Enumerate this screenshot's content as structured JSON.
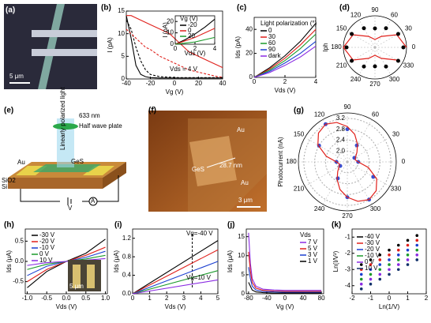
{
  "figures": [
    {
      "panel_label": "(a)",
      "scale_bar": "5 μm"
    },
    {
      "panel_label": "(e)",
      "wavelength": "633 nm",
      "plate": "Half wave plate",
      "beam": "Linearly polarized light",
      "electrode": "Au",
      "flake": "GeS",
      "oxide": "SiO2",
      "substrate": "Si",
      "source": "V",
      "meter": "A"
    },
    {
      "panel_label": "(f)",
      "electrode_top": "Au",
      "electrode_bottom": "Au",
      "flake": "GeS",
      "thickness": "28.7 nm",
      "scale_bar": "3 μm"
    }
  ],
  "chart_data": [
    {
      "type": "line",
      "panel_label": "(b)",
      "xlabel": "Vg (V)",
      "ylabel": "I (pA)",
      "annotations": [
        "Vds = 4 V"
      ],
      "xlim": [
        -40,
        40
      ],
      "xticks": [
        -40,
        -20,
        0,
        20,
        40
      ],
      "ylim": [
        0,
        15
      ],
      "yticks": [
        0,
        5,
        10,
        15
      ],
      "x": [
        -40,
        -36,
        -32,
        -28,
        -24,
        -20,
        -12,
        -4,
        4,
        12,
        20,
        28,
        36,
        40
      ],
      "series": [
        {
          "color": "#000000",
          "values": [
            14,
            9,
            3,
            1,
            0.5,
            0.3,
            0.2,
            0.2,
            0.2,
            0.2,
            0.2,
            0.2,
            0.2,
            0.2
          ]
        },
        {
          "color": "#000000",
          "dash": true,
          "values": [
            13,
            11,
            7,
            4,
            2,
            1,
            0.5,
            0.4,
            0.3,
            0.3,
            0.3,
            0.3,
            0.3,
            0.3
          ]
        },
        {
          "color": "#e0201b",
          "values": [
            14,
            14,
            13.5,
            13,
            12.5,
            12,
            11,
            10,
            8,
            6,
            5,
            4,
            3,
            2.5
          ]
        },
        {
          "color": "#e0201b",
          "dash": true,
          "values": [
            11,
            10,
            9,
            8,
            7,
            6.5,
            5,
            4,
            3,
            2,
            1.5,
            1,
            0.5,
            0.4
          ]
        }
      ]
    },
    {
      "type": "line",
      "xlabel": "Vds (V)",
      "ylabel": "I (pA)",
      "legend_title": "Vg (V)",
      "xlim": [
        0,
        4
      ],
      "xticks": [
        0,
        2,
        4
      ],
      "ylim": [
        0,
        25
      ],
      "yticks": [
        0,
        10,
        20
      ],
      "x": [
        0,
        1,
        2,
        3,
        4
      ],
      "series": [
        {
          "name": "-20",
          "color": "#000000",
          "values": [
            0,
            4,
            9,
            15,
            22
          ]
        },
        {
          "name": "0",
          "color": "#e0201b",
          "values": [
            0,
            3,
            6,
            10,
            14
          ]
        },
        {
          "name": "20",
          "color": "#1a9a2a",
          "values": [
            0,
            1,
            2,
            4,
            6
          ]
        }
      ]
    },
    {
      "type": "line",
      "panel_label": "(c)",
      "xlabel": "Vds (V)",
      "ylabel": "Ids (pA)",
      "legend_title": "Light polarization (°)",
      "xlim": [
        0,
        4
      ],
      "xticks": [
        0,
        2,
        4
      ],
      "ylim": [
        0,
        50
      ],
      "yticks": [
        0,
        20,
        40
      ],
      "x": [
        0,
        1,
        2,
        3,
        4
      ],
      "series": [
        {
          "name": "0",
          "color": "#000000",
          "values": [
            0,
            8,
            18,
            30,
            45
          ]
        },
        {
          "name": "30",
          "color": "#e0201b",
          "values": [
            0,
            7,
            16,
            27,
            40
          ]
        },
        {
          "name": "60",
          "color": "#1a9a2a",
          "values": [
            0,
            6,
            14,
            24,
            36
          ]
        },
        {
          "name": "90",
          "color": "#1b3fd0",
          "values": [
            0,
            5,
            12,
            20,
            30
          ]
        },
        {
          "name": "dark",
          "color": "#8a2be2",
          "values": [
            0,
            4,
            10,
            17,
            26
          ]
        }
      ]
    },
    {
      "type": "polar",
      "panel_label": "(d)",
      "rlabel": "Iph",
      "rlim": [
        0,
        1
      ],
      "xticks": [
        0,
        30,
        60,
        90,
        120,
        150,
        180,
        210,
        240,
        270,
        300,
        330
      ],
      "x": [
        0,
        30,
        60,
        90,
        120,
        150,
        180,
        210,
        240,
        270,
        300,
        330
      ],
      "series": [
        {
          "color": "#e0201b",
          "values": [
            1,
            0.8,
            0.4,
            0.25,
            0.4,
            0.8,
            1,
            0.8,
            0.4,
            0.25,
            0.4,
            0.8
          ]
        },
        {
          "color": "#000000",
          "mode": "markers",
          "values": [
            0.9,
            0.85,
            0.7,
            0.6,
            0.7,
            0.85,
            0.9,
            0.85,
            0.7,
            0.6,
            0.7,
            0.85
          ]
        }
      ]
    },
    {
      "type": "polar",
      "panel_label": "(g)",
      "rlabel": "Photocurrent (nA)",
      "rlim": [
        1.6,
        3.4
      ],
      "rticks": [
        {
          "value": 2,
          "label": "2.0"
        },
        2.4,
        2.8,
        3.2
      ],
      "xticks": [
        0,
        30,
        60,
        90,
        120,
        150,
        180,
        210,
        240,
        270,
        300,
        330
      ],
      "x": [
        0,
        30,
        60,
        90,
        120,
        150,
        180,
        210,
        240,
        270,
        300,
        330
      ],
      "series": [
        {
          "color": "#3a4fd0",
          "mode": "markers",
          "values": [
            2.0,
            1.9,
            2.3,
            2.8,
            3.2,
            2.8,
            2.0,
            1.9,
            2.3,
            2.9,
            3.2,
            2.7
          ]
        },
        {
          "color": "#e0201b",
          "x": [
            0,
            15,
            30,
            45,
            60,
            75,
            90,
            105,
            120,
            135,
            150,
            165,
            180,
            195,
            210,
            225,
            240,
            255,
            270,
            285,
            300,
            315,
            330,
            345,
            360
          ],
          "values": [
            2.0,
            1.9,
            1.95,
            2.1,
            2.35,
            2.65,
            2.9,
            3.1,
            3.2,
            3.1,
            2.85,
            2.4,
            2.0,
            1.9,
            1.95,
            2.1,
            2.35,
            2.65,
            2.9,
            3.1,
            3.2,
            3.1,
            2.85,
            2.4,
            2.0
          ]
        }
      ]
    },
    {
      "type": "line",
      "panel_label": "(h)",
      "xlabel": "Vds (V)",
      "ylabel": "Ids (μA)",
      "scale_bar": "5 μm",
      "xlim": [
        -1.05,
        1.05
      ],
      "xticks": [
        {
          "value": -1,
          "label": "-1.0"
        },
        -0.5,
        {
          "value": 0,
          "label": "0.0"
        },
        0.5,
        {
          "value": 1,
          "label": "1.0"
        }
      ],
      "ylim": [
        -0.8,
        0.8
      ],
      "yticks": [
        -0.5,
        {
          "value": 0,
          "label": "0.0"
        },
        0.5
      ],
      "x": [
        -1,
        -0.5,
        0,
        0.5,
        1
      ],
      "series": [
        {
          "name": "-30 V",
          "color": "#000000",
          "values": [
            -0.65,
            -0.25,
            0,
            0.2,
            0.55
          ]
        },
        {
          "name": "-20 V",
          "color": "#e0201b",
          "values": [
            -0.5,
            -0.2,
            0,
            0.15,
            0.35
          ]
        },
        {
          "name": "-10 V",
          "color": "#1b3fd0",
          "values": [
            -0.35,
            -0.12,
            0,
            0.1,
            0.25
          ]
        },
        {
          "name": "0 V",
          "color": "#1a9a2a",
          "values": [
            -0.2,
            -0.07,
            0,
            0.06,
            0.15
          ]
        },
        {
          "name": "10 V",
          "color": "#8a2be2",
          "values": [
            -0.1,
            -0.03,
            0,
            0.03,
            0.07
          ]
        }
      ]
    },
    {
      "type": "line",
      "panel_label": "(i)",
      "xlabel": "Vds (V)",
      "ylabel": "Ids (μA)",
      "annotations": [
        "Vg=-40 V",
        "Vg=10 V"
      ],
      "vline": 3.5,
      "xlim": [
        0,
        5
      ],
      "xticks": [
        0,
        1,
        2,
        3,
        4,
        5
      ],
      "ylim": [
        0,
        1.4
      ],
      "yticks": [
        {
          "value": 0,
          "label": "0.0"
        },
        0.4,
        0.8,
        1.2
      ],
      "x": [
        0,
        5
      ],
      "series": [
        {
          "color": "#000000",
          "values": [
            0,
            1.15
          ]
        },
        {
          "color": "#e0201b",
          "values": [
            0,
            0.95
          ]
        },
        {
          "color": "#1b3fd0",
          "values": [
            0,
            0.7
          ]
        },
        {
          "color": "#1a9a2a",
          "values": [
            0,
            0.5
          ]
        },
        {
          "color": "#8a2be2",
          "values": [
            0,
            0.3
          ]
        }
      ]
    },
    {
      "type": "line",
      "panel_label": "(j)",
      "xlabel": "Vg (V)",
      "ylabel": "Ids (μA)",
      "legend_title": "Vds",
      "xlim": [
        -85,
        85
      ],
      "xticks": [
        -80,
        -40,
        0,
        40,
        80
      ],
      "ylim": [
        0,
        17
      ],
      "yticks": [
        0,
        5,
        10,
        15
      ],
      "x": [
        -80,
        -76,
        -72,
        -64,
        -48,
        -24,
        0,
        40,
        80
      ],
      "series": [
        {
          "name": "7 V",
          "color": "#8a2be2",
          "values": [
            16,
            8,
            4,
            2,
            1.2,
            1,
            0.9,
            0.9,
            0.9
          ]
        },
        {
          "name": "5 V",
          "color": "#e0201b",
          "values": [
            11,
            6,
            3,
            1.5,
            0.9,
            0.7,
            0.6,
            0.6,
            0.6
          ]
        },
        {
          "name": "3 V",
          "color": "#1b3fd0",
          "values": [
            7,
            4,
            2,
            1,
            0.6,
            0.5,
            0.4,
            0.4,
            0.4
          ]
        },
        {
          "name": "1 V",
          "color": "#000000",
          "values": [
            3,
            2,
            1,
            0.5,
            0.3,
            0.2,
            0.2,
            0.2,
            0.2
          ]
        }
      ]
    },
    {
      "type": "scatter",
      "panel_label": "(k)",
      "xlabel": "Ln(1/V)",
      "ylabel": "Ln(I/V²)",
      "xlim": [
        -2,
        2
      ],
      "xticks": [
        -2,
        -1,
        0,
        1,
        2
      ],
      "ylim": [
        -4.5,
        -0.5
      ],
      "yticks": [
        -4,
        -3,
        -2,
        -1
      ],
      "x": [
        -1.5,
        -1,
        -0.5,
        0,
        0.5,
        1,
        1.5
      ],
      "series": [
        {
          "name": "-40 V",
          "color": "#000000",
          "values": [
            -2.7,
            -2.4,
            -2.1,
            -1.8,
            -1.5,
            -1.2,
            -0.9
          ]
        },
        {
          "name": "-30 V",
          "color": "#e0201b",
          "values": [
            -3.0,
            -2.7,
            -2.4,
            -2.1,
            -1.8,
            -1.5,
            -1.2
          ]
        },
        {
          "name": "-20 V",
          "color": "#1b3fd0",
          "values": [
            -3.3,
            -3.0,
            -2.7,
            -2.4,
            -2.1,
            -1.8,
            -1.5
          ]
        },
        {
          "name": "-10 V",
          "color": "#1a9a2a",
          "values": [
            -3.6,
            -3.3,
            -3.0,
            -2.7,
            -2.4,
            -2.1,
            -1.8
          ]
        },
        {
          "name": "0 V",
          "color": "#8a2be2",
          "values": [
            -3.9,
            -3.6,
            -3.3,
            -3.0,
            -2.7,
            -2.4,
            -2.1
          ]
        },
        {
          "name": "10 V",
          "color": "#10306a",
          "values": [
            -4.2,
            -3.9,
            -3.6,
            -3.3,
            -3.0,
            -2.7,
            -2.4
          ]
        }
      ]
    }
  ]
}
